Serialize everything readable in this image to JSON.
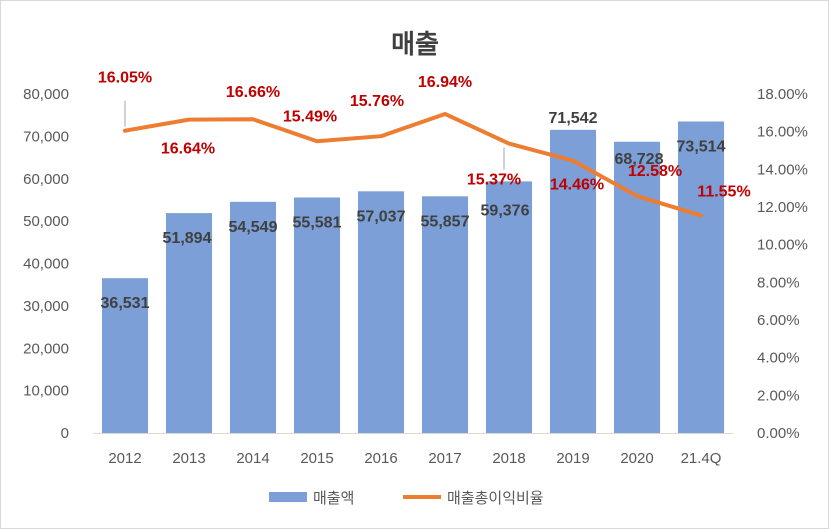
{
  "chart_data": {
    "type": "bar",
    "title": "매출",
    "categories": [
      "2012",
      "2013",
      "2014",
      "2015",
      "2016",
      "2017",
      "2018",
      "2019",
      "2020",
      "21.4Q"
    ],
    "series": [
      {
        "name": "매출액",
        "type": "bar",
        "axis": "left",
        "color": "#7b9fd6",
        "values": [
          36531,
          51894,
          54549,
          55581,
          57037,
          55857,
          59376,
          71542,
          68728,
          73514
        ],
        "labels": [
          "36,531",
          "51,894",
          "54,549",
          "55,581",
          "57,037",
          "55,857",
          "59,376",
          "71,542",
          "68,728",
          "73,514"
        ]
      },
      {
        "name": "매출총이익비율",
        "type": "line",
        "axis": "right",
        "color": "#ed7d31",
        "values": [
          16.05,
          16.64,
          16.66,
          15.49,
          15.76,
          16.94,
          15.37,
          14.46,
          12.58,
          11.55
        ],
        "labels": [
          "16.05%",
          "16.64%",
          "16.66%",
          "15.49%",
          "15.76%",
          "16.94%",
          "15.37%",
          "14.46%",
          "12.58%",
          "11.55%"
        ]
      }
    ],
    "y_left": {
      "range": [
        0,
        80000
      ],
      "ticks": [
        "0",
        "10,000",
        "20,000",
        "30,000",
        "40,000",
        "50,000",
        "60,000",
        "70,000",
        "80,000"
      ]
    },
    "y_right": {
      "range": [
        0,
        18
      ],
      "ticks": [
        "0.00%",
        "2.00%",
        "4.00%",
        "6.00%",
        "8.00%",
        "10.00%",
        "12.00%",
        "14.00%",
        "16.00%",
        "18.00%"
      ]
    },
    "grid": false,
    "legend_position": "bottom"
  }
}
